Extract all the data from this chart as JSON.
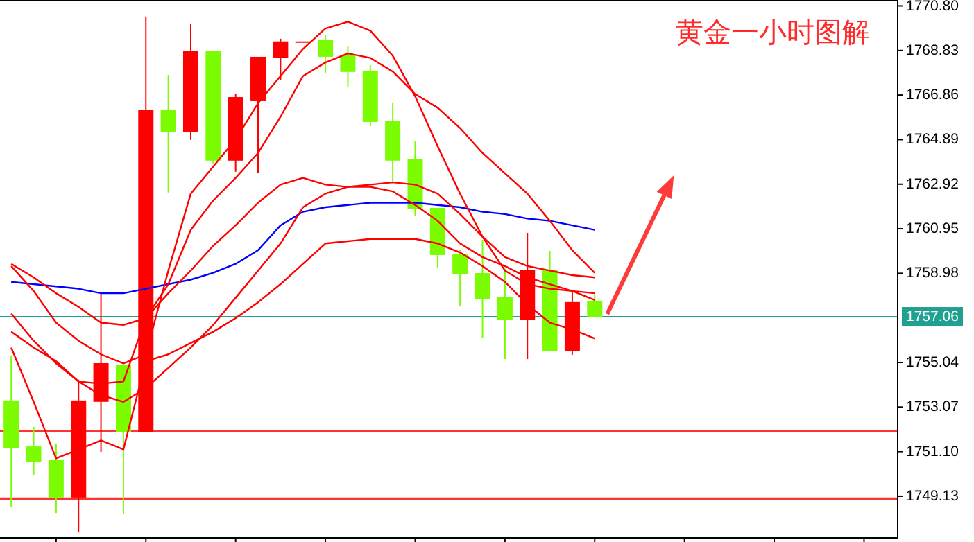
{
  "chart_data": {
    "type": "candlestick",
    "title": "黄金一小时图解",
    "categories": [
      null,
      null,
      null,
      null,
      null,
      null,
      null,
      null,
      null,
      null,
      null,
      null,
      null,
      null,
      null,
      null,
      null,
      null,
      null,
      null,
      null,
      null,
      null,
      null,
      null,
      null,
      null,
      null,
      null,
      null,
      null,
      null,
      null,
      null,
      null,
      null,
      null,
      null,
      null,
      null
    ],
    "ohlc": [
      [
        1753.36,
        1755.32,
        1748.64,
        1751.27
      ],
      [
        1751.33,
        1752.19,
        1750.05,
        1750.66
      ],
      [
        1750.72,
        1751.46,
        1748.39,
        1749.07
      ],
      [
        1749.07,
        1754.28,
        1747.53,
        1753.36
      ],
      [
        1753.3,
        1758.14,
        1751.09,
        1755.01
      ],
      [
        1754.95,
        1754.95,
        1748.33,
        1751.95
      ],
      [
        1751.95,
        1770.33,
        1751.95,
        1766.22
      ],
      [
        1766.22,
        1767.75,
        1762.55,
        1765.24
      ],
      [
        1765.24,
        1770.02,
        1764.88,
        1768.8
      ],
      [
        1768.8,
        1768.8,
        1763.84,
        1763.96
      ],
      [
        1763.96,
        1766.9,
        1763.47,
        1766.77
      ],
      [
        1766.59,
        1768.55,
        1763.4,
        1768.55
      ],
      [
        1768.49,
        1769.35,
        1767.51,
        1769.23
      ],
      [
        1769.23,
        1769.23,
        1769.23,
        1769.23
      ],
      [
        1769.29,
        1769.53,
        1767.81,
        1768.55
      ],
      [
        1768.61,
        1769.04,
        1767.2,
        1767.88
      ],
      [
        1767.94,
        1768.18,
        1765.49,
        1765.67
      ],
      [
        1765.73,
        1766.53,
        1763.04,
        1763.96
      ],
      [
        1764.02,
        1764.81,
        1761.51,
        1761.81
      ],
      [
        1761.87,
        1761.87,
        1759.24,
        1759.79
      ],
      [
        1759.85,
        1760.03,
        1757.52,
        1758.93
      ],
      [
        1758.99,
        1760.46,
        1756.11,
        1757.83
      ],
      [
        1757.95,
        1759.18,
        1755.19,
        1756.91
      ],
      [
        1756.91,
        1760.77,
        1755.19,
        1759.12
      ],
      [
        1759.12,
        1759.97,
        1755.56,
        1755.56
      ],
      [
        1755.56,
        1758.14,
        1755.38,
        1757.71
      ],
      [
        1757.77,
        1758.01,
        1757.06,
        1757.06
      ],
      null,
      null,
      null,
      null,
      null,
      null,
      null,
      null,
      null,
      null,
      null,
      null,
      null
    ],
    "colors": [
      "#7cfc00",
      "#7cfc00",
      "#7cfc00",
      "#ff0000",
      "#ff0000",
      "#7cfc00",
      "#ff0000",
      "#7cfc00",
      "#ff0000",
      "#7cfc00",
      "#ff0000",
      "#ff0000",
      "#ff0000",
      "#ff0000",
      "#7cfc00",
      "#7cfc00",
      "#7cfc00",
      "#7cfc00",
      "#7cfc00",
      "#7cfc00",
      "#7cfc00",
      "#7cfc00",
      "#7cfc00",
      "#ff0000",
      "#7cfc00",
      "#ff0000",
      "#7cfc00",
      null,
      null,
      null,
      null,
      null,
      null,
      null,
      null,
      null,
      null,
      null,
      null,
      null
    ],
    "series": [
      {
        "type": "line",
        "color": "#0000ff",
        "values": [
          1758.6,
          1758.5,
          1758.4,
          1758.3,
          1758.1,
          1758.1,
          1758.3,
          1758.5,
          1758.7,
          1759.0,
          1759.4,
          1760.0,
          1761.1,
          1761.7,
          1761.9,
          1762.0,
          1762.1,
          1762.1,
          1762.1,
          1762.0,
          1761.9,
          1761.7,
          1761.6,
          1761.4,
          1761.3,
          1761.1,
          1760.9,
          null,
          null,
          null,
          null,
          null,
          null,
          null,
          null,
          null,
          null,
          null,
          null,
          null
        ]
      },
      {
        "type": "line",
        "color": "#ff0000",
        "values": [
          1759.3,
          1758.2,
          1756.8,
          1756.0,
          1755.4,
          1755.0,
          1755.4,
          1759.1,
          1762.5,
          1763.7,
          1764.9,
          1766.5,
          1767.7,
          1768.9,
          1769.8,
          1770.1,
          1769.7,
          1768.6,
          1766.8,
          1764.6,
          1762.5,
          1760.6,
          1759.1,
          1758.5,
          1758.3,
          1758.2,
          1758.1,
          null,
          null,
          null,
          null,
          null,
          null,
          null,
          null,
          null,
          null,
          null,
          null,
          null
        ]
      },
      {
        "type": "line",
        "color": "#ff0000",
        "values": [
          1759.4,
          1758.8,
          1758.1,
          1757.5,
          1756.8,
          1756.7,
          1757.0,
          1758.5,
          1760.9,
          1762.2,
          1763.2,
          1764.3,
          1765.9,
          1767.7,
          1768.3,
          1768.7,
          1768.5,
          1767.9,
          1766.9,
          1766.3,
          1765.4,
          1764.3,
          1763.4,
          1762.5,
          1761.3,
          1760.0,
          1759.0,
          null,
          null,
          null,
          null,
          null,
          null,
          null,
          null,
          null,
          null,
          null,
          null,
          null
        ]
      },
      {
        "type": "line",
        "color": "#ff0000",
        "values": [
          1757.2,
          1756.0,
          1755.0,
          1754.2,
          1754.1,
          1754.2,
          1757.0,
          1758.1,
          1759.1,
          1760.2,
          1761.1,
          1762.1,
          1762.9,
          1763.2,
          1762.9,
          1762.8,
          1762.9,
          1763.0,
          1762.9,
          1762.5,
          1761.6,
          1760.6,
          1759.7,
          1759.3,
          1759.1,
          1758.9,
          1758.8,
          null,
          null,
          null,
          null,
          null,
          null,
          null,
          null,
          null,
          null,
          null,
          null,
          null
        ]
      },
      {
        "type": "line",
        "color": "#ff0000",
        "values": [
          1756.4,
          1755.7,
          1755.1,
          1754.2,
          1753.6,
          1753.3,
          1753.9,
          1754.8,
          1755.7,
          1756.7,
          1757.9,
          1759.1,
          1760.3,
          1761.9,
          1762.5,
          1762.8,
          1762.8,
          1762.6,
          1762.0,
          1761.3,
          1760.3,
          1759.7,
          1759.3,
          1758.8,
          1758.5,
          1758.2,
          1757.8,
          null,
          null,
          null,
          null,
          null,
          null,
          null,
          null,
          null,
          null,
          null,
          null,
          null
        ]
      },
      {
        "type": "line",
        "color": "#ff0000",
        "values": [
          1755.7,
          1753.3,
          1750.8,
          1751.2,
          1751.6,
          1751.2,
          1755.1,
          1755.4,
          1755.9,
          1756.4,
          1757.0,
          1757.7,
          1758.5,
          1759.4,
          1760.3,
          1760.4,
          1760.5,
          1760.5,
          1760.5,
          1760.3,
          1759.9,
          1759.3,
          1758.6,
          1757.6,
          1756.8,
          1756.5,
          1756.1,
          null,
          null,
          null,
          null,
          null,
          null,
          null,
          null,
          null,
          null,
          null,
          null,
          null
        ]
      }
    ],
    "ylim": [
      1747.29,
      1771.06
    ],
    "yticks": [
      {
        "value": 1770.8,
        "label": "1770.80"
      },
      {
        "value": 1768.83,
        "label": "1768.83"
      },
      {
        "value": 1766.86,
        "label": "1766.86"
      },
      {
        "value": 1764.89,
        "label": "1764.89"
      },
      {
        "value": 1762.92,
        "label": "1762.92"
      },
      {
        "value": 1760.95,
        "label": "1760.95"
      },
      {
        "value": 1758.98,
        "label": "1758.98"
      },
      {
        "value": 1755.04,
        "label": "1755.04"
      },
      {
        "value": 1753.07,
        "label": "1753.07"
      },
      {
        "value": 1751.1,
        "label": "1751.10"
      },
      {
        "value": 1749.13,
        "label": "1749.13"
      }
    ],
    "ref_lines": [
      {
        "axis": "y",
        "value": 1757.06,
        "label": "1757.06",
        "color": "#20a090"
      },
      {
        "axis": "y",
        "value": 1752.01,
        "color": "#ff3333"
      },
      {
        "axis": "y",
        "value": 1749.01,
        "color": "#ff3333"
      }
    ]
  }
}
